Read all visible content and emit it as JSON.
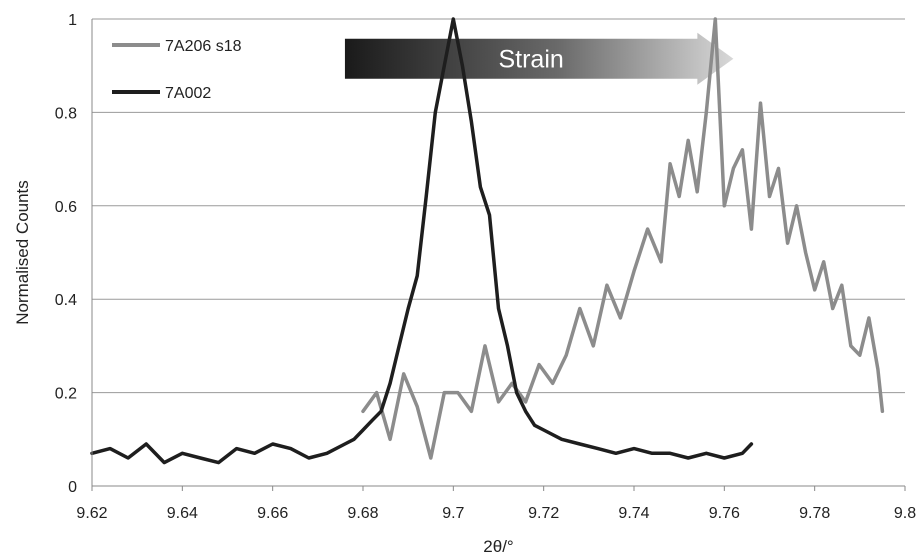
{
  "chart_data": {
    "type": "line",
    "title": "",
    "xlabel": "2θ/°",
    "ylabel": "Normalised Counts",
    "xlim": [
      9.62,
      9.8
    ],
    "ylim": [
      0,
      1
    ],
    "grid": {
      "horizontal": true,
      "vertical": false
    },
    "legend_position": "top-left",
    "x_ticks": [
      "9.62",
      "9.64",
      "9.66",
      "9.68",
      "9.7",
      "9.72",
      "9.74",
      "9.76",
      "9.78",
      "9.8"
    ],
    "y_ticks": [
      "0",
      "0.2",
      "0.4",
      "0.6",
      "0.8",
      "1"
    ],
    "annotation": {
      "text": "Strain",
      "x_start": 9.676,
      "x_end": 9.762,
      "y": 0.915
    },
    "series": [
      {
        "name": "7A206 s18",
        "color": "#8c8c8c",
        "x": [
          9.68,
          9.683,
          9.686,
          9.689,
          9.692,
          9.695,
          9.698,
          9.701,
          9.704,
          9.707,
          9.71,
          9.713,
          9.716,
          9.719,
          9.722,
          9.725,
          9.728,
          9.731,
          9.734,
          9.737,
          9.74,
          9.743,
          9.746,
          9.748,
          9.75,
          9.752,
          9.754,
          9.756,
          9.758,
          9.76,
          9.762,
          9.764,
          9.766,
          9.768,
          9.77,
          9.772,
          9.774,
          9.776,
          9.778,
          9.78,
          9.782,
          9.784,
          9.786,
          9.788,
          9.79,
          9.792,
          9.794,
          9.795
        ],
        "y": [
          0.16,
          0.2,
          0.1,
          0.24,
          0.17,
          0.06,
          0.2,
          0.2,
          0.16,
          0.3,
          0.18,
          0.22,
          0.18,
          0.26,
          0.22,
          0.28,
          0.38,
          0.3,
          0.43,
          0.36,
          0.46,
          0.55,
          0.48,
          0.69,
          0.62,
          0.74,
          0.63,
          0.8,
          1.0,
          0.6,
          0.68,
          0.72,
          0.55,
          0.82,
          0.62,
          0.68,
          0.52,
          0.6,
          0.5,
          0.42,
          0.48,
          0.38,
          0.43,
          0.3,
          0.28,
          0.36,
          0.25,
          0.16
        ]
      },
      {
        "name": "7A002",
        "color": "#1e1e1e",
        "x": [
          9.62,
          9.624,
          9.628,
          9.632,
          9.636,
          9.64,
          9.644,
          9.648,
          9.652,
          9.656,
          9.66,
          9.664,
          9.668,
          9.672,
          9.676,
          9.678,
          9.68,
          9.682,
          9.684,
          9.686,
          9.688,
          9.69,
          9.692,
          9.694,
          9.696,
          9.698,
          9.7,
          9.702,
          9.704,
          9.706,
          9.708,
          9.71,
          9.712,
          9.714,
          9.716,
          9.718,
          9.72,
          9.724,
          9.728,
          9.732,
          9.736,
          9.74,
          9.744,
          9.748,
          9.752,
          9.756,
          9.76,
          9.764,
          9.766
        ],
        "y": [
          0.07,
          0.08,
          0.06,
          0.09,
          0.05,
          0.07,
          0.06,
          0.05,
          0.08,
          0.07,
          0.09,
          0.08,
          0.06,
          0.07,
          0.09,
          0.1,
          0.12,
          0.14,
          0.16,
          0.22,
          0.3,
          0.38,
          0.45,
          0.62,
          0.8,
          0.9,
          1.0,
          0.9,
          0.78,
          0.64,
          0.58,
          0.38,
          0.3,
          0.2,
          0.16,
          0.13,
          0.12,
          0.1,
          0.09,
          0.08,
          0.07,
          0.08,
          0.07,
          0.07,
          0.06,
          0.07,
          0.06,
          0.07,
          0.09
        ]
      }
    ]
  }
}
